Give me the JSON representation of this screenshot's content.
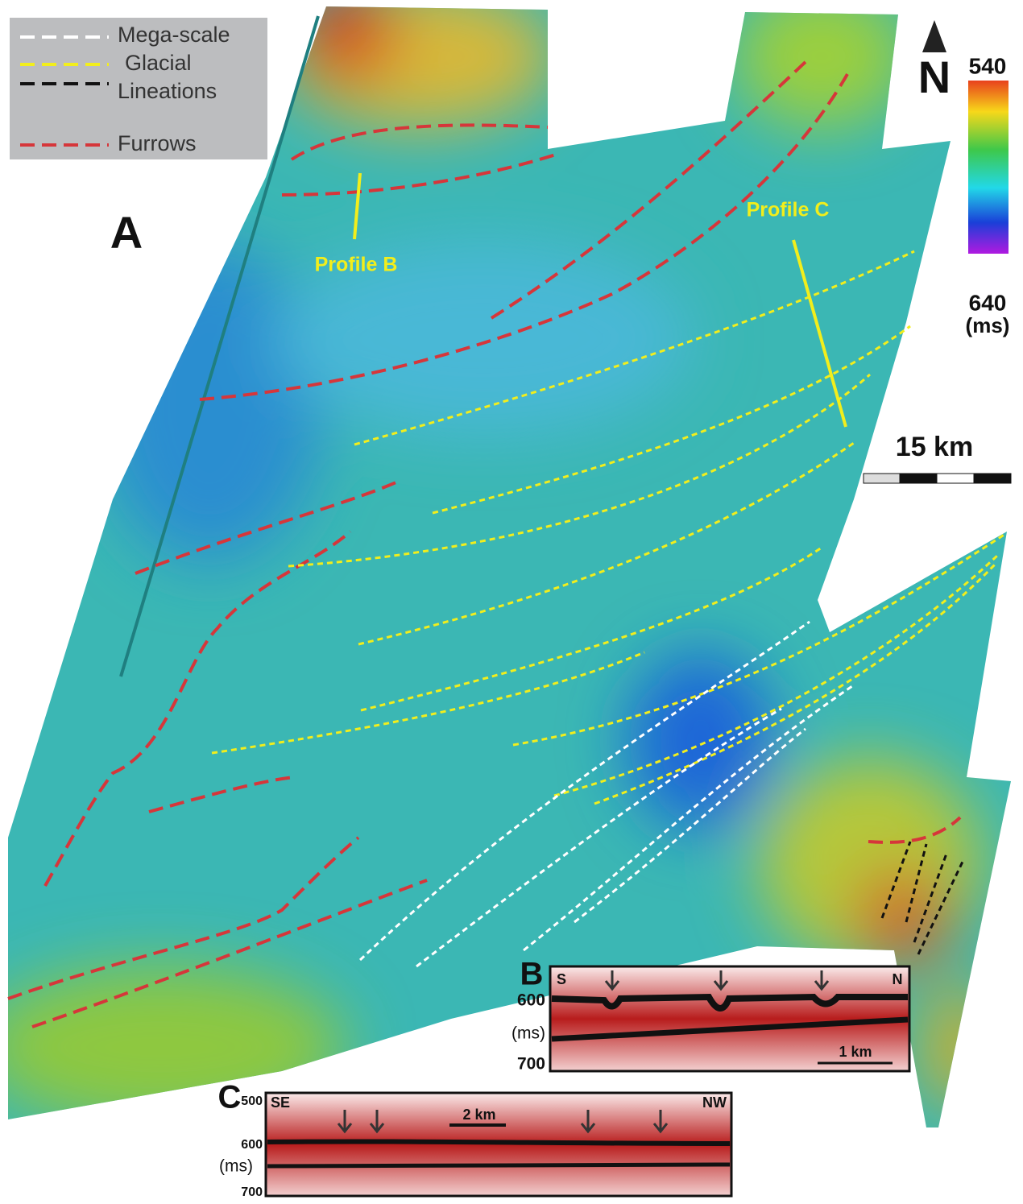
{
  "legend": {
    "items": [
      "Mega-scale",
      "Glacial",
      "Lineations",
      "Furrows"
    ]
  },
  "panels": {
    "a": "A",
    "b": "B",
    "c": "C"
  },
  "map": {
    "north": "N",
    "profile_b": "Profile B",
    "profile_c": "Profile C",
    "scale_bar": "15 km"
  },
  "colorbar": {
    "top": 540,
    "bottom": 640,
    "unit": "(ms)"
  },
  "profile_b": {
    "left": "S",
    "right": "N",
    "ticks": [
      600,
      700
    ],
    "unit": "(ms)",
    "scale": "1 km"
  },
  "profile_c": {
    "left": "SE",
    "right": "NW",
    "ticks": [
      500,
      600,
      700
    ],
    "unit": "(ms)",
    "scale": "2 km"
  }
}
